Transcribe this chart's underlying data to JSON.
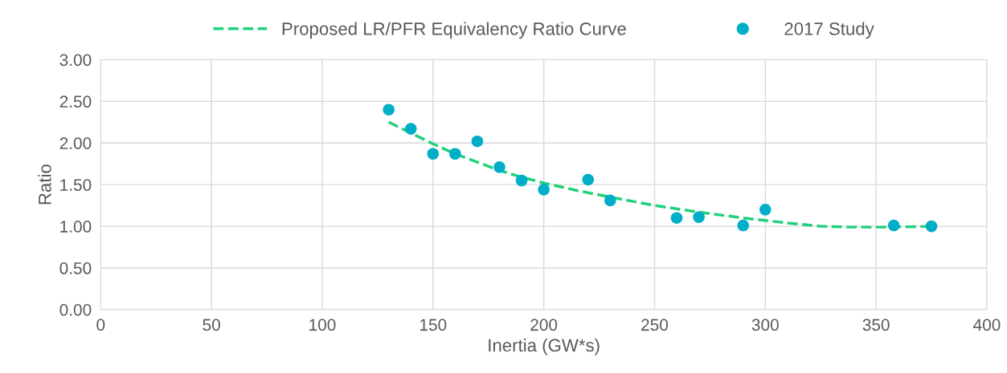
{
  "chart_data": {
    "type": "scatter",
    "xlabel": "Inertia (GW*s)",
    "ylabel": "Ratio",
    "series": [
      {
        "name": "Proposed LR/PFR Equivalency Ratio Curve",
        "type": "line",
        "color": "#1fd17a",
        "line_style": "dashed",
        "marker": "none",
        "x": [
          130,
          140,
          150,
          160,
          170,
          180,
          190,
          200,
          215,
          230,
          250,
          270,
          290,
          310,
          325,
          340,
          355,
          375
        ],
        "values": [
          2.25,
          2.12,
          1.99,
          1.87,
          1.77,
          1.67,
          1.59,
          1.52,
          1.43,
          1.35,
          1.25,
          1.17,
          1.1,
          1.04,
          1.0,
          0.99,
          0.99,
          1.0
        ]
      },
      {
        "name": "2017 Study",
        "color": "#00aec7",
        "marker": "circle",
        "x": [
          130,
          140,
          150,
          160,
          170,
          180,
          190,
          200,
          220,
          230,
          260,
          270,
          290,
          300,
          358,
          375
        ],
        "values": [
          2.4,
          2.17,
          1.87,
          1.87,
          2.02,
          1.71,
          1.55,
          1.44,
          1.56,
          1.31,
          1.1,
          1.11,
          1.01,
          1.2,
          1.01,
          1.0
        ]
      }
    ],
    "xlim": [
      0,
      400
    ],
    "xticks": [
      0,
      50,
      100,
      150,
      200,
      250,
      300,
      350,
      400
    ],
    "ylim": [
      0,
      3
    ],
    "yticks": [
      {
        "value": 0,
        "label": "0.00"
      },
      {
        "value": 0.5,
        "label": "0.50"
      },
      {
        "value": 1,
        "label": "1.00"
      },
      {
        "value": 1.5,
        "label": "1.50"
      },
      {
        "value": 2,
        "label": "2.00"
      },
      {
        "value": 2.5,
        "label": "2.50"
      },
      {
        "value": 3,
        "label": "3.00"
      }
    ],
    "grid": true,
    "legend": "top"
  }
}
